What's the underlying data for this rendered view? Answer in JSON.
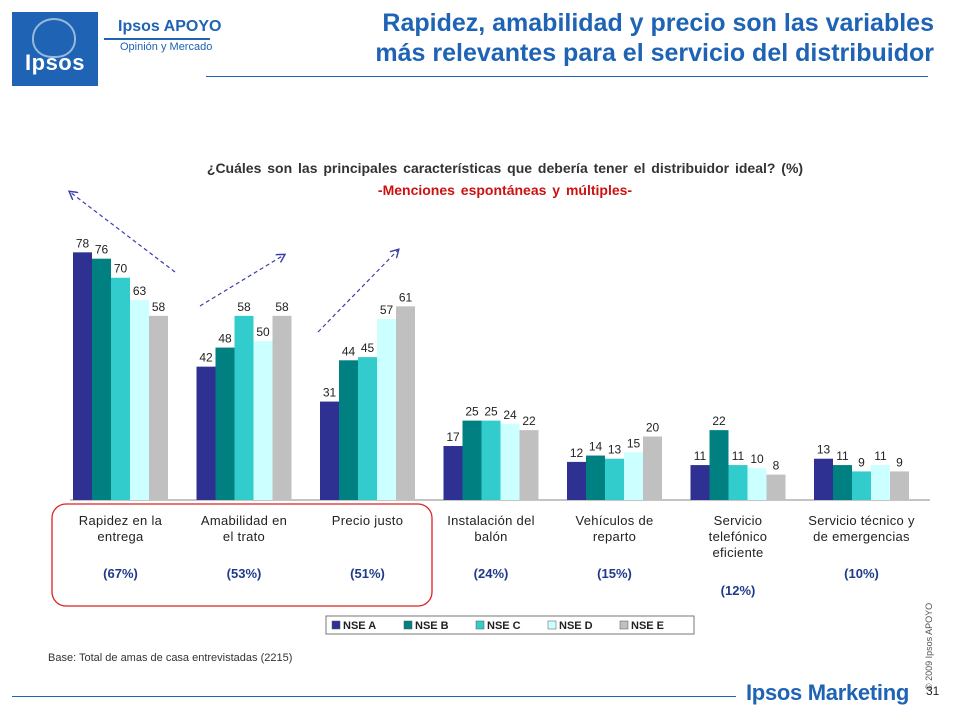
{
  "header": {
    "logo_text": "Ipsos",
    "company_name": "Ipsos APOYO",
    "company_sub": "Opinión y Mercado",
    "title_line1": "Rapidez, amabilidad y precio son las variables",
    "title_line2": "más relevantes para el servicio del distribuidor"
  },
  "question": "¿Cuáles son las principales características que debería tener el distribuidor ideal? (%)",
  "subquestion": "-Menciones espontáneas y múltiples-",
  "footer": {
    "base": "Base: Total de amas de casa entrevistadas (2215)",
    "copyright": "© 2009 Ipsos APOYO",
    "brand": "Ipsos Marketing",
    "page": "31"
  },
  "colors": {
    "brand_blue": "#1e63b4",
    "highlight_red": "#cc1111"
  },
  "chart_data": {
    "type": "bar",
    "categories": [
      [
        "Rapidez en la",
        "entrega"
      ],
      [
        "Amabilidad en",
        "el trato"
      ],
      [
        "Precio justo"
      ],
      [
        "Instalación del",
        "balón"
      ],
      [
        "Vehículos de",
        "reparto"
      ],
      [
        "Servicio",
        "telefónico",
        "eficiente"
      ],
      [
        "Servicio técnico y",
        "de emergencias"
      ]
    ],
    "totals": [
      "(67%)",
      "(53%)",
      "(51%)",
      "(24%)",
      "(15%)",
      "(12%)",
      "(10%)"
    ],
    "series": [
      {
        "name": "NSE A",
        "color": "#2e3192",
        "values": [
          78,
          42,
          31,
          17,
          12,
          11,
          13
        ]
      },
      {
        "name": "NSE B",
        "color": "#008080",
        "values": [
          76,
          48,
          44,
          25,
          14,
          22,
          11
        ]
      },
      {
        "name": "NSE C",
        "color": "#33cccc",
        "values": [
          70,
          58,
          45,
          25,
          13,
          11,
          9
        ]
      },
      {
        "name": "NSE D",
        "color": "#ccffff",
        "values": [
          63,
          50,
          57,
          24,
          15,
          10,
          11
        ]
      },
      {
        "name": "NSE E",
        "color": "#c0c0c0",
        "values": [
          58,
          58,
          61,
          22,
          20,
          8,
          9
        ]
      }
    ],
    "ylim": [
      0,
      85
    ],
    "grid": false,
    "legend_placement": "bottom"
  }
}
